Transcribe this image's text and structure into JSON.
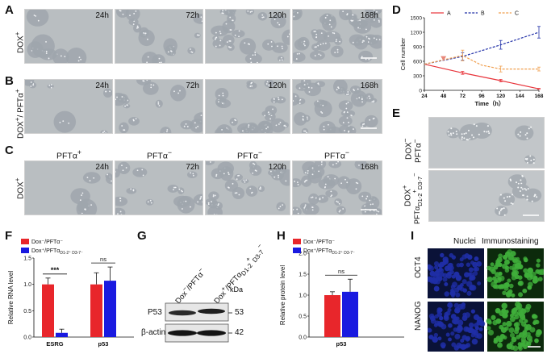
{
  "panels": {
    "A": {
      "label": "A",
      "row_label": "DOX",
      "row_sup": "+",
      "times": [
        "24h",
        "72h",
        "120h",
        "168h"
      ]
    },
    "B": {
      "label": "B",
      "row_label": "DOX",
      "row_sup": "+",
      "row_label2": "/ PFTα",
      "row_sup2": "+",
      "times": [
        "24h",
        "72h",
        "120h",
        "168h"
      ]
    },
    "C": {
      "label": "C",
      "row_label": "DOX",
      "row_sup": "+",
      "times": [
        "24h",
        "72h",
        "120h",
        "168h"
      ],
      "treatments": [
        {
          "t": "PFTα",
          "s": "+"
        },
        {
          "t": "PFTα",
          "s": "−"
        },
        {
          "t": "PFTα",
          "s": "−"
        },
        {
          "t": "PFTα",
          "s": "−"
        }
      ]
    },
    "D": {
      "label": "D"
    },
    "E": {
      "label": "E",
      "row1_a": "DOX",
      "row1_a_sup": "−",
      "row1_b": "PFTα",
      "row1_b_sup": "−",
      "row2_a": "DOX",
      "row2_a_sup": "+",
      "row2_b": "PFTα",
      "row2_b_sub": "D1-2",
      "row2_b_sup": "+",
      "row2_b_sub2": "D3-7",
      "row2_b_sup2": "−"
    },
    "F": {
      "label": "F"
    },
    "G": {
      "label": "G",
      "lane1": "Dox",
      "lane1_sup": "−",
      "lane1_b": "/PFTα",
      "lane1_b_sup": "−",
      "lane2": "Dox",
      "lane2_sup": "+",
      "lane2_b": "/PFTα",
      "lane2_b_sub": "D1-2",
      "lane2_b_sup": "+",
      "lane2_b_sub2": "D3-7",
      "lane2_b_sup2": "−",
      "kda": "kDa",
      "bands": [
        {
          "name": "P53",
          "mw": "53"
        },
        {
          "name": "β-actin",
          "mw": "42"
        }
      ]
    },
    "H": {
      "label": "H"
    },
    "I": {
      "label": "I",
      "col1": "Nuclei",
      "col2": "Immunostaining",
      "rows": [
        "OCT4",
        "NANOG"
      ]
    }
  },
  "chart_data": [
    {
      "panel": "D",
      "type": "line",
      "xlabel": "Time（h）",
      "ylabel": "Cell number",
      "xlim": [
        24,
        168
      ],
      "ylim": [
        0,
        1500
      ],
      "xticks": [
        24,
        48,
        72,
        96,
        120,
        144,
        168
      ],
      "yticks": [
        0,
        300,
        600,
        900,
        1200,
        1500
      ],
      "legend_position": "top",
      "series": [
        {
          "name": "A",
          "color": "#e8343b",
          "x": [
            24,
            72,
            120,
            168
          ],
          "y": [
            540,
            360,
            200,
            30
          ],
          "err": [
            0,
            30,
            25,
            10
          ]
        },
        {
          "name": "B",
          "color": "#2231a8",
          "x": [
            24,
            72,
            120,
            168
          ],
          "y": [
            540,
            700,
            940,
            1200
          ],
          "err": [
            0,
            80,
            90,
            120
          ]
        },
        {
          "name": "C",
          "color": "#f0a050",
          "x": [
            24,
            72,
            96,
            120,
            168
          ],
          "y": [
            540,
            720,
            520,
            440,
            440
          ],
          "err": [
            0,
            110,
            0,
            60,
            40
          ]
        }
      ],
      "marker_color": "#e8887a"
    },
    {
      "panel": "F",
      "type": "bar",
      "ylabel": "Relative RNA level",
      "ylim": [
        0,
        1.5
      ],
      "yticks": [
        "0.0",
        "0.5",
        "1.0",
        "1.5"
      ],
      "categories": [
        "ESRG",
        "p53"
      ],
      "legend_position": "top-left",
      "series": [
        {
          "name": "Dox⁻/PFTα⁻",
          "color": "#e8262b",
          "values": [
            1.0,
            1.0
          ],
          "err": [
            0.12,
            0.22
          ]
        },
        {
          "name": "Dox⁺/PFTα",
          "name_sub": "D1-2⁺ D3-7⁻",
          "color": "#1a1ae0",
          "values": [
            0.08,
            1.07
          ],
          "err": [
            0.07,
            0.26
          ]
        }
      ],
      "annotations": [
        "***",
        "ns"
      ]
    },
    {
      "panel": "H",
      "type": "bar",
      "ylabel": "Relative protein level",
      "ylim": [
        0,
        2.0
      ],
      "yticks": [
        "0.0",
        "0.5",
        "1.0",
        "1.5",
        "2.0"
      ],
      "categories": [
        "p53"
      ],
      "legend_position": "top-left",
      "series": [
        {
          "name": "Dox⁻/PFTα⁻",
          "color": "#e8262b",
          "values": [
            1.0
          ],
          "err": [
            0.08
          ]
        },
        {
          "name": "Dox⁺/PFTα",
          "name_sub": "D1-2⁺ D3-7⁻",
          "color": "#1a1ae0",
          "values": [
            1.08
          ],
          "err": [
            0.3
          ]
        }
      ],
      "annotations": [
        "ns"
      ]
    }
  ]
}
